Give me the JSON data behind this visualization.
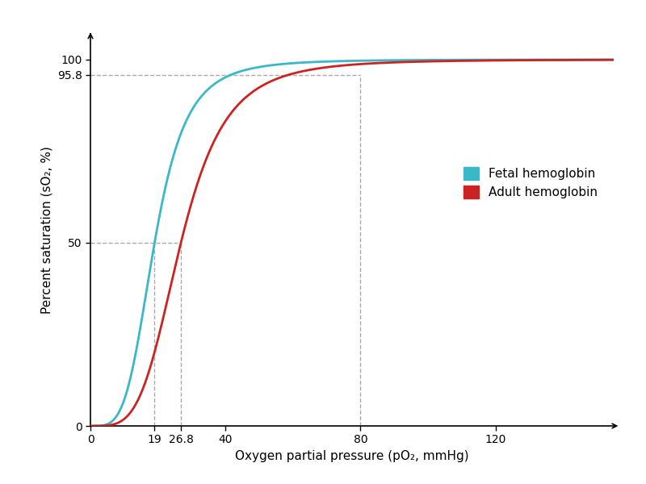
{
  "title": "",
  "xlabel": "Oxygen partial pressure (pO₂, mmHg)",
  "ylabel": "Percent saturation (sO₂, %)",
  "fetal_p50": 19,
  "adult_p50": 26.8,
  "fetal_color": "#3ab8c8",
  "adult_color": "#cc2222",
  "xlim": [
    0,
    155
  ],
  "ylim": [
    0,
    107
  ],
  "dashed_color": "#aaaaaa",
  "legend_fetal": "Fetal hemoglobin",
  "legend_adult": "Adult hemoglobin",
  "background_color": "#ffffff",
  "line_width": 2.0,
  "legend_fontsize": 11,
  "axis_fontsize": 11,
  "tick_fontsize": 10,
  "hill_n": 4.0,
  "pO2_max": 155
}
